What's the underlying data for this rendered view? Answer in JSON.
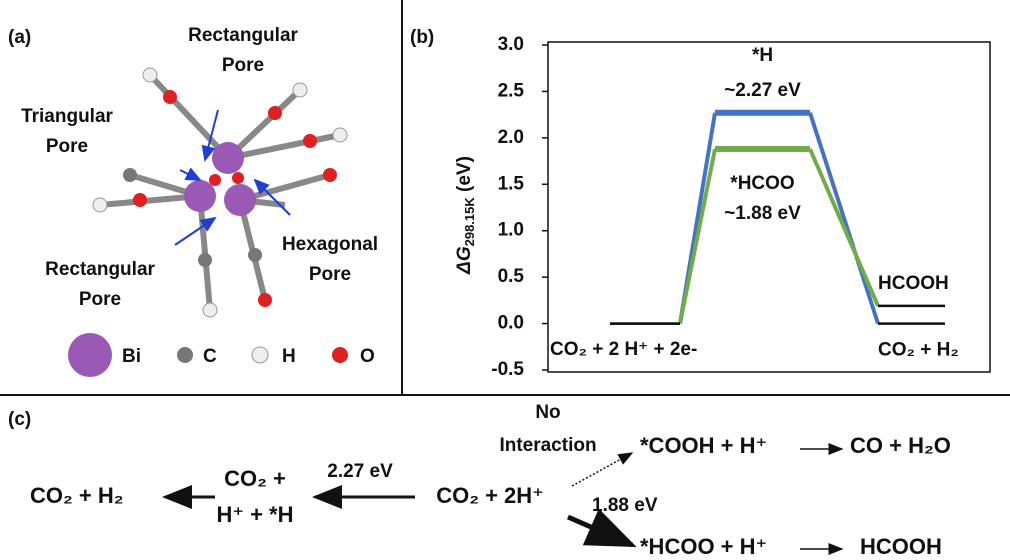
{
  "panel_labels": [
    "(a)",
    "(b)",
    "(c)"
  ],
  "panel_a": {
    "pore_labels": [
      [
        "Rectangular",
        "Pore"
      ],
      [
        "Triangular",
        "Pore"
      ],
      [
        "Rectangular",
        "Pore"
      ],
      [
        "Hexagonal",
        "Pore"
      ]
    ],
    "legend": [
      "Bi",
      "C",
      "H",
      "O"
    ]
  },
  "chart_data": {
    "type": "energy",
    "y_label": {
      "symbol": "ΔG",
      "subscript": "298.15K",
      "unit": "(eV)"
    },
    "ylim": [
      -0.5,
      3.0
    ],
    "yticks": [
      {
        "value": 3.0,
        "label": "3.0"
      },
      2.5,
      {
        "value": 2.0,
        "label": "2.0"
      },
      1.5,
      {
        "value": 1.0,
        "label": "1.0"
      },
      0.5,
      {
        "value": 0.0,
        "label": "0.0"
      },
      -0.5
    ],
    "start_label": "CO₂ + 2 H⁺ + 2e-",
    "series": [
      {
        "name": "*H",
        "color": "#4472c4",
        "values": [
          0,
          2.27,
          0
        ],
        "value_labels": [
          null,
          "~2.27 eV",
          null
        ],
        "end_label": "CO₂ + H₂"
      },
      {
        "name": "*HCOO",
        "color": "#70ad47",
        "values": [
          0,
          1.88,
          0.19
        ],
        "value_labels": [
          null,
          "~1.88 eV",
          null
        ],
        "end_label": "HCOOH"
      }
    ]
  },
  "panel_c": {
    "products_h2": "CO₂ + H₂",
    "intermediate_h": [
      "CO₂ +",
      "H⁺ + *H"
    ],
    "energy_h": "2.27 eV",
    "reactant": "CO₂ + 2H⁺",
    "no_interaction": [
      "No",
      "Interaction"
    ],
    "cooh": "*COOH + H⁺",
    "co": "CO + H₂O",
    "energy_hcoo": "1.88 eV",
    "hcoo": "*HCOO + H⁺",
    "hcooh": "HCOOH"
  }
}
